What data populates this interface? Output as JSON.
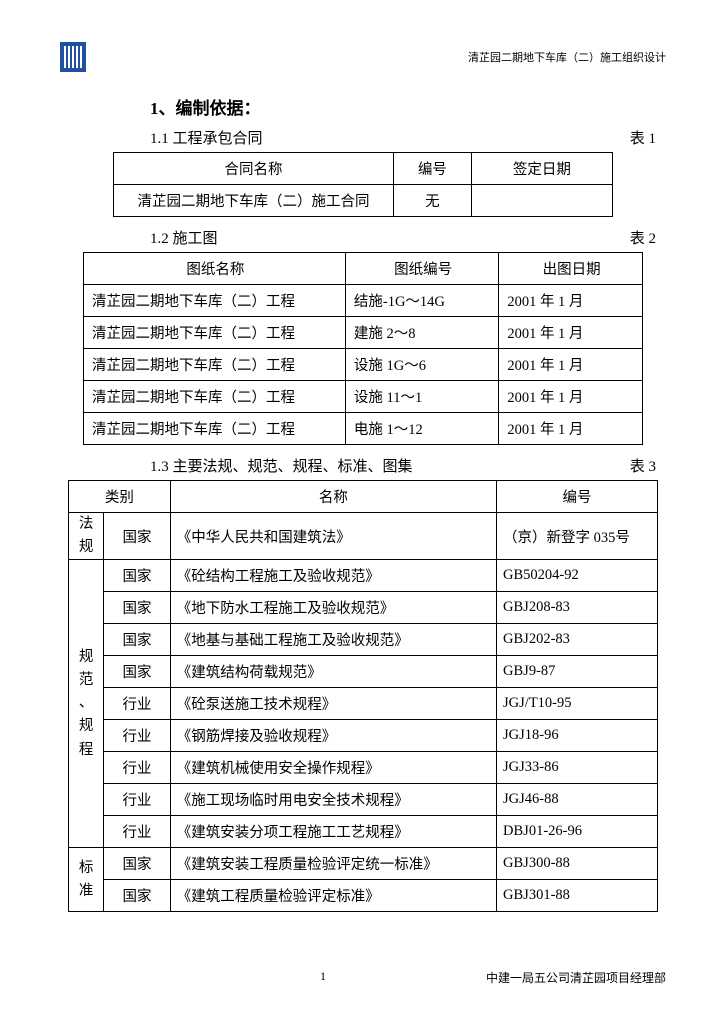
{
  "header_right": "清芷园二期地下车库（二）施工组织设计",
  "section1_title": "1、编制依据：",
  "sub11_left": "1.1 工程承包合同",
  "sub11_right": "表 1",
  "table1": {
    "headers": [
      "合同名称",
      "编号",
      "签定日期"
    ],
    "row": [
      "清芷园二期地下车库（二）施工合同",
      "无",
      ""
    ]
  },
  "sub12_left": "1.2 施工图",
  "sub12_right": "表 2",
  "table2": {
    "headers": [
      "图纸名称",
      "图纸编号",
      "出图日期"
    ],
    "rows": [
      [
        "清芷园二期地下车库（二）工程",
        "结施-1G～14G",
        "2001 年 1 月"
      ],
      [
        "清芷园二期地下车库（二）工程",
        "建施 2～8",
        "2001 年 1 月"
      ],
      [
        "清芷园二期地下车库（二）工程",
        "设施 1G～6",
        "2001 年 1 月"
      ],
      [
        "清芷园二期地下车库（二）工程",
        "设施 11～1",
        "2001 年 1 月"
      ],
      [
        "清芷园二期地下车库（二）工程",
        "电施 1～12",
        "2001 年 1 月"
      ]
    ]
  },
  "sub13_left": "1.3 主要法规、规范、规程、标准、图集",
  "sub13_right": "表 3",
  "table3": {
    "headers": [
      "类别",
      "",
      "名称",
      "编号"
    ],
    "groups": [
      {
        "cat": "法规",
        "rows": [
          [
            "国家",
            "《中华人民共和国建筑法》",
            "（京）新登字 035号"
          ]
        ]
      },
      {
        "cat": "规范、规程",
        "rows": [
          [
            "国家",
            "《砼结构工程施工及验收规范》",
            "GB50204-92"
          ],
          [
            "国家",
            "《地下防水工程施工及验收规范》",
            "GBJ208-83"
          ],
          [
            "国家",
            "《地基与基础工程施工及验收规范》",
            "GBJ202-83"
          ],
          [
            "国家",
            "《建筑结构荷载规范》",
            "GBJ9-87"
          ],
          [
            "行业",
            "《砼泵送施工技术规程》",
            "JGJ/T10-95"
          ],
          [
            "行业",
            "《钢筋焊接及验收规程》",
            "JGJ18-96"
          ],
          [
            "行业",
            "《建筑机械使用安全操作规程》",
            "JGJ33-86"
          ],
          [
            "行业",
            "《施工现场临时用电安全技术规程》",
            "JGJ46-88"
          ],
          [
            "行业",
            "《建筑安装分项工程施工工艺规程》",
            "DBJ01-26-96"
          ]
        ]
      },
      {
        "cat": "标准",
        "rows": [
          [
            "国家",
            "《建筑安装工程质量检验评定统一标准》",
            "GBJ300-88"
          ],
          [
            "国家",
            "《建筑工程质量检验评定标准》",
            "GBJ301-88"
          ]
        ]
      }
    ]
  },
  "page_number": "1",
  "footer_right": "中建一局五公司清芷园项目经理部"
}
